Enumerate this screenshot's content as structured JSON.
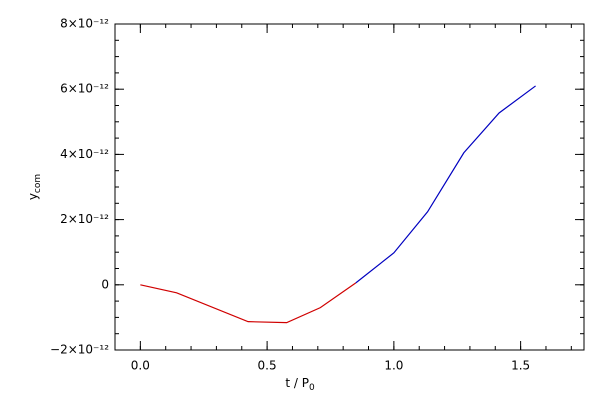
{
  "chart_data": {
    "type": "line",
    "xlabel": {
      "text": "t / P",
      "subscript": "0"
    },
    "ylabel": {
      "text": "y",
      "subscript": "com"
    },
    "series": [
      {
        "color": "#d00000",
        "x": [
          0.0,
          0.143,
          0.425,
          0.577,
          0.71,
          0.85
        ],
        "values": [
          0,
          -2.45e-13,
          -1.13e-12,
          -1.16e-12,
          -7e-13,
          6e-14
        ]
      },
      {
        "color": "#0000c0",
        "x": [
          0.85,
          1.0,
          1.133,
          1.276,
          1.415,
          1.559
        ],
        "values": [
          6e-14,
          9.8e-13,
          2.24e-12,
          4.05e-12,
          5.27e-12,
          6.1e-12
        ]
      }
    ],
    "xlim": [
      -0.1,
      1.75
    ],
    "xticks": [
      {
        "value": 0,
        "label": "0.0"
      },
      0.5,
      {
        "value": 1,
        "label": "1.0"
      },
      1.5
    ],
    "ylim": [
      -2e-12,
      8e-12
    ],
    "yticks": [
      {
        "value": -2e-12,
        "label": "−2×10⁻¹²"
      },
      0,
      {
        "value": 2e-12,
        "label": "2×10⁻¹²"
      },
      {
        "value": 4e-12,
        "label": "4×10⁻¹²"
      },
      {
        "value": 6e-12,
        "label": "6×10⁻¹²"
      },
      {
        "value": 8e-12,
        "label": "8×10⁻¹²"
      }
    ]
  }
}
